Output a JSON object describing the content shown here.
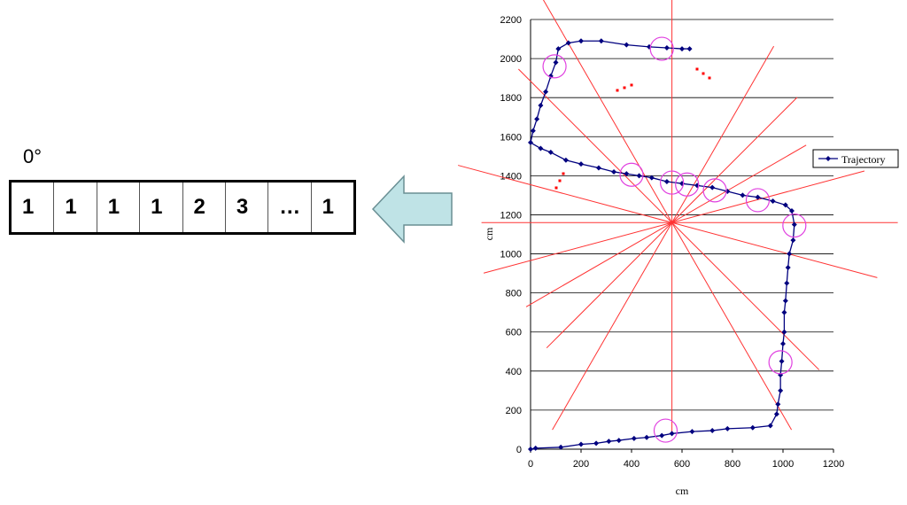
{
  "diagram": {
    "angle_label": "0°",
    "array_cells": [
      "1",
      "1",
      "1",
      "1",
      "2",
      "3",
      "…",
      "1"
    ],
    "arrow_color": "#bfe3e6",
    "cell_border_color": "#000000"
  },
  "chart_data": {
    "type": "scatter",
    "title": "",
    "xlabel": "cm",
    "ylabel": "cm",
    "xlim": [
      0,
      1200
    ],
    "ylim": [
      0,
      2200
    ],
    "x_ticks": [
      "0",
      "200",
      "400",
      "600",
      "800",
      "1000",
      "1200"
    ],
    "y_ticks": [
      "0",
      "200",
      "400",
      "600",
      "800",
      "1000",
      "1200",
      "1400",
      "1600",
      "1800",
      "2000",
      "2200"
    ],
    "grid": true,
    "legend_position": "right",
    "series": [
      {
        "name": "Trajectory",
        "color": "#00007f",
        "points": [
          [
            0,
            0
          ],
          [
            20,
            5
          ],
          [
            120,
            10
          ],
          [
            200,
            25
          ],
          [
            260,
            30
          ],
          [
            310,
            40
          ],
          [
            350,
            45
          ],
          [
            410,
            55
          ],
          [
            460,
            60
          ],
          [
            520,
            70
          ],
          [
            560,
            80
          ],
          [
            640,
            90
          ],
          [
            720,
            95
          ],
          [
            780,
            105
          ],
          [
            880,
            110
          ],
          [
            950,
            120
          ],
          [
            975,
            180
          ],
          [
            980,
            230
          ],
          [
            990,
            300
          ],
          [
            990,
            380
          ],
          [
            995,
            450
          ],
          [
            1000,
            540
          ],
          [
            1005,
            600
          ],
          [
            1005,
            700
          ],
          [
            1010,
            760
          ],
          [
            1015,
            850
          ],
          [
            1020,
            930
          ],
          [
            1025,
            1000
          ],
          [
            1040,
            1070
          ],
          [
            1045,
            1150
          ],
          [
            1035,
            1220
          ],
          [
            1010,
            1250
          ],
          [
            960,
            1270
          ],
          [
            900,
            1290
          ],
          [
            840,
            1300
          ],
          [
            780,
            1320
          ],
          [
            720,
            1340
          ],
          [
            660,
            1350
          ],
          [
            600,
            1360
          ],
          [
            540,
            1370
          ],
          [
            480,
            1390
          ],
          [
            430,
            1400
          ],
          [
            380,
            1410
          ],
          [
            330,
            1420
          ],
          [
            270,
            1440
          ],
          [
            200,
            1460
          ],
          [
            140,
            1480
          ],
          [
            80,
            1520
          ],
          [
            40,
            1540
          ],
          [
            0,
            1570
          ],
          [
            10,
            1630
          ],
          [
            25,
            1690
          ],
          [
            40,
            1760
          ],
          [
            60,
            1830
          ],
          [
            80,
            1910
          ],
          [
            100,
            1980
          ],
          [
            110,
            2050
          ],
          [
            150,
            2080
          ],
          [
            200,
            2090
          ],
          [
            280,
            2090
          ],
          [
            380,
            2070
          ],
          [
            470,
            2060
          ],
          [
            540,
            2055
          ],
          [
            600,
            2050
          ],
          [
            630,
            2050
          ]
        ]
      }
    ],
    "circled_points": [
      [
        95,
        1960
      ],
      [
        520,
        2050
      ],
      [
        400,
        1405
      ],
      [
        560,
        1365
      ],
      [
        620,
        1355
      ],
      [
        730,
        1325
      ],
      [
        900,
        1275
      ],
      [
        1045,
        1145
      ],
      [
        990,
        445
      ],
      [
        535,
        95
      ]
    ],
    "radial_lines": {
      "color": "#ff3333",
      "center": [
        560,
        1160
      ],
      "angles_deg": [
        0,
        15,
        30,
        45,
        60,
        90,
        120,
        135,
        165
      ]
    }
  }
}
